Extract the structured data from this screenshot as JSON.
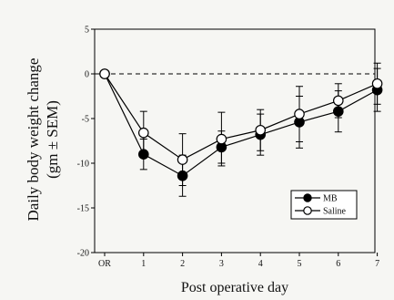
{
  "chart_data": {
    "type": "line",
    "categories": [
      "OR",
      "1",
      "2",
      "3",
      "4",
      "5",
      "6",
      "7"
    ],
    "xlabel": "Post operative day",
    "ylabel_line1": "Daily body weight change",
    "ylabel_line2": "(gm ± SEM)",
    "ylim": [
      -20,
      5
    ],
    "yticks": [
      5,
      0,
      -5,
      -10,
      -15,
      -20
    ],
    "reference_line": {
      "y": 0,
      "style": "dashed"
    },
    "grid": false,
    "legend_position": "lower-right",
    "series": [
      {
        "name": "MB",
        "marker": "filled-circle",
        "color": "#000000",
        "values": [
          0,
          -9.0,
          -11.4,
          -8.2,
          -6.8,
          -5.4,
          -4.2,
          -1.8
        ],
        "errors": [
          0,
          1.7,
          2.3,
          1.8,
          2.3,
          2.9,
          2.3,
          2.4
        ]
      },
      {
        "name": "Saline",
        "marker": "open-circle",
        "color": "#000000",
        "values": [
          0,
          -6.6,
          -9.6,
          -7.3,
          -6.3,
          -4.5,
          -3.0,
          -1.1
        ],
        "errors": [
          0,
          2.4,
          2.9,
          3.0,
          2.3,
          3.1,
          1.9,
          2.3
        ]
      }
    ]
  }
}
